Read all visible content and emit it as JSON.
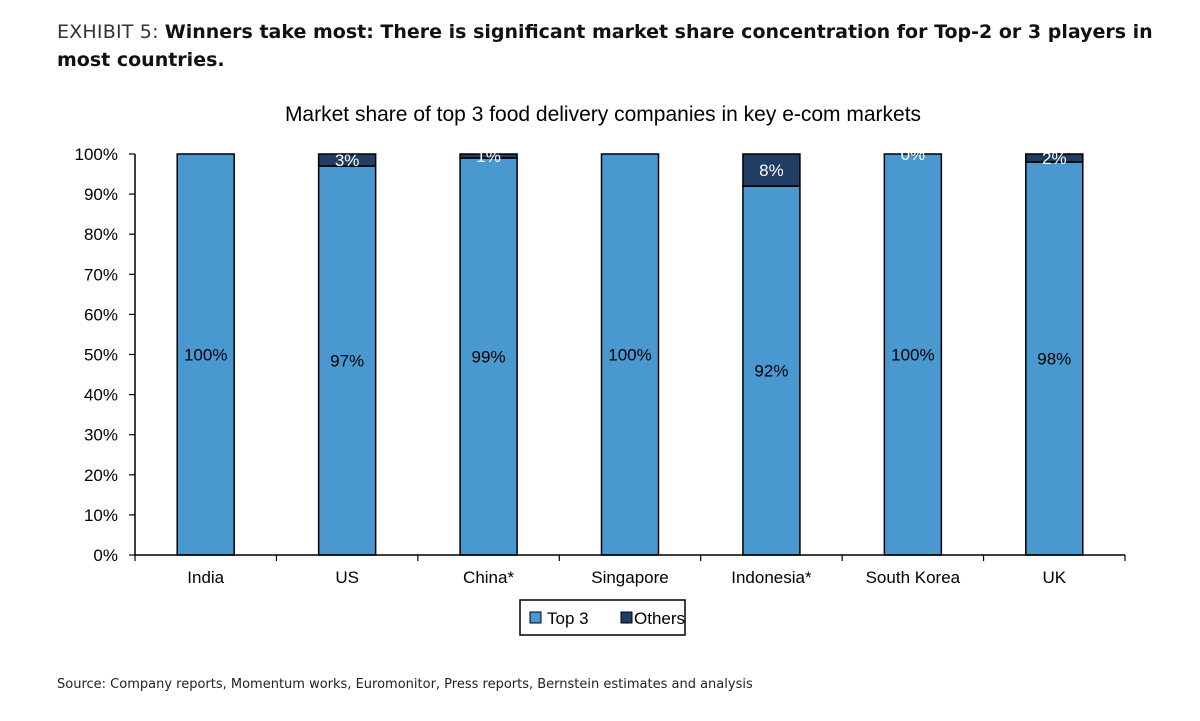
{
  "exhibit": {
    "prefix": "EXHIBIT 5:",
    "headline": "Winners take most: There is significant market share concentration for Top-2 or 3 players in most countries."
  },
  "source": "Source: Company reports, Momentum works, Euromonitor, Press reports, Bernstein estimates and analysis",
  "colors": {
    "top3": "#4a98d0",
    "others": "#223d63",
    "axis": "#000000"
  },
  "chart_data": {
    "type": "bar",
    "stacked": true,
    "title": "Market share of top 3 food delivery companies in key e-com markets",
    "categories": [
      "India",
      "US",
      "China*",
      "Singapore",
      "Indonesia*",
      "South Korea",
      "UK"
    ],
    "series": [
      {
        "name": "Top 3",
        "values": [
          100,
          97,
          99,
          100,
          92,
          100,
          98
        ],
        "labels": [
          "100%",
          "97%",
          "99%",
          "100%",
          "92%",
          "100%",
          "98%"
        ]
      },
      {
        "name": "Others",
        "values": [
          0,
          3,
          1,
          0,
          8,
          0,
          2
        ],
        "labels": [
          "",
          "3%",
          "1%",
          "",
          "8%",
          "0%",
          "2%"
        ]
      }
    ],
    "y_ticks": [
      "0%",
      "10%",
      "20%",
      "30%",
      "40%",
      "50%",
      "60%",
      "70%",
      "80%",
      "90%",
      "100%"
    ],
    "ylim": [
      0,
      100
    ],
    "xlabel": "",
    "ylabel": "",
    "legend": [
      "Top 3",
      "Others"
    ],
    "legend_position": "bottom-center",
    "grid": false
  }
}
